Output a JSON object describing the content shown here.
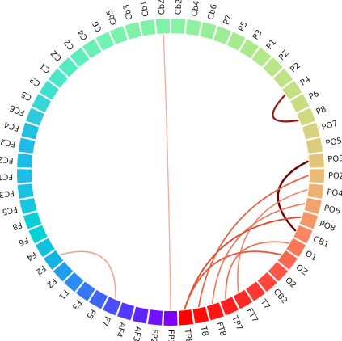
{
  "diagram": {
    "type": "circular-connectivity",
    "nodes": [
      {
        "label": "FP1",
        "color": "#7F00FF"
      },
      {
        "label": "FP2",
        "color": "#7111FF"
      },
      {
        "label": "AF3",
        "color": "#6025FE"
      },
      {
        "label": "AF4",
        "color": "#5339FD"
      },
      {
        "label": "F7",
        "color": "#4A4FFB"
      },
      {
        "label": "F5",
        "color": "#3F64F8"
      },
      {
        "label": "F3",
        "color": "#3678F4"
      },
      {
        "label": "F1",
        "color": "#2A8CF0"
      },
      {
        "label": "FZ",
        "color": "#209EEB"
      },
      {
        "label": "F2",
        "color": "#16B1E4"
      },
      {
        "label": "F4",
        "color": "#0CC2DE"
      },
      {
        "label": "F6",
        "color": "#00D2D6"
      },
      {
        "label": "F8",
        "color": "#09CFD8"
      },
      {
        "label": "FC5",
        "color": "#13C8DF"
      },
      {
        "label": "FC3",
        "color": "#18C3E2"
      },
      {
        "label": "FC1",
        "color": "#1CBCE6"
      },
      {
        "label": "FCZ",
        "color": "#1BBCE6"
      },
      {
        "label": "FC2",
        "color": "#1FBAE7"
      },
      {
        "label": "FC4",
        "color": "#23C0E4"
      },
      {
        "label": "FC6",
        "color": "#2DCBDD"
      },
      {
        "label": "C5",
        "color": "#36D6D6"
      },
      {
        "label": "C3",
        "color": "#40DFCE"
      },
      {
        "label": "C1",
        "color": "#49E6C8"
      },
      {
        "label": "CZ",
        "color": "#52EBC2"
      },
      {
        "label": "C2",
        "color": "#5CEEBC"
      },
      {
        "label": "C4",
        "color": "#66F0B6"
      },
      {
        "label": "C6",
        "color": "#70F2B1"
      },
      {
        "label": "Cb5",
        "color": "#78F2AD"
      },
      {
        "label": "Cb3",
        "color": "#80F2A8"
      },
      {
        "label": "Cb1",
        "color": "#80F2A8"
      },
      {
        "label": "CbZ",
        "color": "#80F2A8"
      },
      {
        "label": "Cb2",
        "color": "#86F2A4"
      },
      {
        "label": "Cb4",
        "color": "#8EF09E"
      },
      {
        "label": "Cb6",
        "color": "#96EE98"
      },
      {
        "label": "P7",
        "color": "#9EEC93"
      },
      {
        "label": "P5",
        "color": "#A4EB8F"
      },
      {
        "label": "P3",
        "color": "#ABEA8B"
      },
      {
        "label": "P1",
        "color": "#B2E988"
      },
      {
        "label": "PZ",
        "color": "#B8E686"
      },
      {
        "label": "P2",
        "color": "#BEE384"
      },
      {
        "label": "P4",
        "color": "#C4E083"
      },
      {
        "label": "P6",
        "color": "#CADC82"
      },
      {
        "label": "P8",
        "color": "#D0D880"
      },
      {
        "label": "PO7",
        "color": "#D6D27E"
      },
      {
        "label": "PO5",
        "color": "#DCCC7C"
      },
      {
        "label": "PO3",
        "color": "#E2C47A"
      },
      {
        "label": "POZ",
        "color": "#E8BA76"
      },
      {
        "label": "PO4",
        "color": "#ECB072"
      },
      {
        "label": "PO6",
        "color": "#F0A46C"
      },
      {
        "label": "PO8",
        "color": "#F49666"
      },
      {
        "label": "CB1",
        "color": "#F8865F"
      },
      {
        "label": "O1",
        "color": "#FA7657"
      },
      {
        "label": "OZ",
        "color": "#FC664E"
      },
      {
        "label": "O2",
        "color": "#FD5645"
      },
      {
        "label": "CB2",
        "color": "#FE463B"
      },
      {
        "label": "T7",
        "color": "#FF3730"
      },
      {
        "label": "FT7",
        "color": "#FF2A26"
      },
      {
        "label": "TP7",
        "color": "#FF1E1C"
      },
      {
        "label": "FT8",
        "color": "#FF1513"
      },
      {
        "label": "T8",
        "color": "#FF0C0A"
      },
      {
        "label": "TP8",
        "color": "#FF0000"
      }
    ],
    "links": [
      {
        "from": "CbZ",
        "to": "FP1",
        "strength": 0.12
      },
      {
        "from": "P4",
        "to": "P8",
        "strength": 0.85
      },
      {
        "from": "PO3",
        "to": "CB1",
        "strength": 1.0
      },
      {
        "from": "POZ",
        "to": "T8",
        "strength": 0.45
      },
      {
        "from": "PO4",
        "to": "FT7",
        "strength": 0.3
      },
      {
        "from": "PO6",
        "to": "FT8",
        "strength": 0.35
      },
      {
        "from": "PO8",
        "to": "TP8",
        "strength": 0.55
      },
      {
        "from": "O1",
        "to": "TP7",
        "strength": 0.4
      },
      {
        "from": "OZ",
        "to": "TP8",
        "strength": 0.5
      },
      {
        "from": "F7",
        "to": "F2",
        "strength": 0.2
      }
    ]
  }
}
